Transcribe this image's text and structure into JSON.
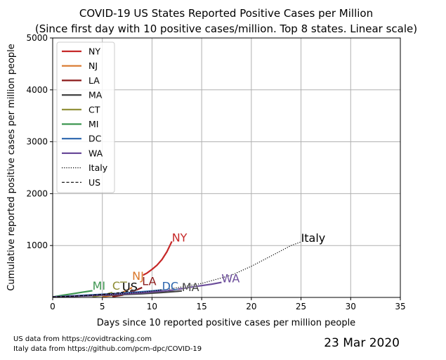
{
  "chart_data": {
    "type": "line",
    "title": "COVID-19 US States Reported Positive Cases per Million",
    "subtitle": "(Since first day with 10 positive cases/million. Top 8 states. Linear scale)",
    "xlabel": "Days since 10 reported positive cases per million people",
    "ylabel": "Cumulative reported positive cases per million people",
    "xlim": [
      0,
      35
    ],
    "ylim": [
      0,
      5000
    ],
    "xticks": [
      0,
      5,
      10,
      15,
      20,
      25,
      30,
      35
    ],
    "yticks": [
      1000,
      2000,
      3000,
      4000,
      5000
    ],
    "grid": true,
    "legend_position": "top-left",
    "series": [
      {
        "name": "NY",
        "color": "#c62828",
        "style": "solid",
        "label": "NY",
        "x": [
          9,
          9.5,
          10,
          10.5,
          11,
          11.5,
          12
        ],
        "y": [
          420,
          470,
          540,
          620,
          730,
          880,
          1080
        ]
      },
      {
        "name": "NJ",
        "color": "#d9772b",
        "style": "solid",
        "label": "NJ",
        "x": [
          5,
          6,
          7,
          8
        ],
        "y": [
          12,
          40,
          90,
          190
        ]
      },
      {
        "name": "LA",
        "color": "#8b1a1a",
        "style": "solid",
        "label": "LA",
        "x": [
          6,
          7,
          8,
          9
        ],
        "y": [
          15,
          45,
          110,
          190
        ]
      },
      {
        "name": "MA",
        "color": "#444444",
        "style": "solid",
        "label": "MA",
        "x": [
          0,
          3,
          6,
          9,
          11,
          13
        ],
        "y": [
          10,
          28,
          45,
          70,
          95,
          125
        ]
      },
      {
        "name": "CT",
        "color": "#8c8b30",
        "style": "solid",
        "label": "CT",
        "x": [
          4,
          5,
          6
        ],
        "y": [
          15,
          40,
          95
        ]
      },
      {
        "name": "MI",
        "color": "#3e9651",
        "style": "solid",
        "label": "MI",
        "x": [
          0,
          1,
          2,
          3,
          4
        ],
        "y": [
          10,
          40,
          70,
          100,
          130
        ]
      },
      {
        "name": "DC",
        "color": "#2a64ad",
        "style": "solid",
        "label": "DC",
        "x": [
          0,
          2,
          4,
          6,
          8,
          10,
          11
        ],
        "y": [
          10,
          30,
          50,
          70,
          95,
          125,
          145
        ]
      },
      {
        "name": "WA",
        "color": "#6b4c9a",
        "style": "solid",
        "label": "WA",
        "x": [
          0,
          3,
          6,
          9,
          12,
          14,
          16,
          17
        ],
        "y": [
          10,
          30,
          55,
          90,
          140,
          200,
          255,
          290
        ]
      },
      {
        "name": "Italy",
        "color": "#000000",
        "style": "dotted",
        "label": "Italy",
        "x": [
          0,
          3,
          6,
          9,
          12,
          15,
          18,
          20,
          22,
          24,
          25
        ],
        "y": [
          10,
          30,
          60,
          100,
          170,
          270,
          430,
          600,
          800,
          1000,
          1070
        ]
      },
      {
        "name": "US",
        "color": "#000000",
        "style": "dashed",
        "label": "US",
        "x": [
          0,
          2,
          4,
          6,
          7,
          8
        ],
        "y": [
          10,
          25,
          45,
          75,
          100,
          130
        ]
      }
    ],
    "label_positions": {
      "NY": [
        12,
        1080
      ],
      "NJ": [
        8,
        340
      ],
      "LA": [
        9,
        240
      ],
      "MA": [
        13,
        125
      ],
      "CT": [
        6,
        150
      ],
      "MI": [
        4,
        150
      ],
      "DC": [
        11,
        145
      ],
      "WA": [
        17,
        290
      ],
      "Italy": [
        25,
        1070
      ],
      "US": [
        7,
        130
      ]
    }
  },
  "footer": {
    "source_us": "US data from https://covidtracking.com",
    "source_italy": "Italy data from https://github.com/pcm-dpc/COVID-19",
    "date": "23 Mar 2020"
  }
}
